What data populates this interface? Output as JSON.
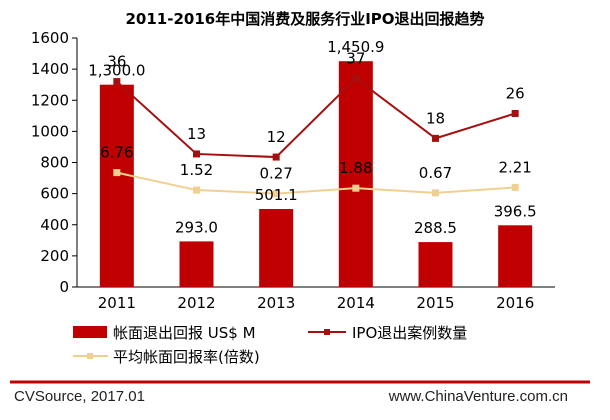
{
  "chart_data": {
    "type": "bar",
    "title": "2011-2016年中国消费及服务行业IPO退出回报趋势",
    "categories": [
      "2011",
      "2012",
      "2013",
      "2014",
      "2015",
      "2016"
    ],
    "ylim": [
      0,
      1600
    ],
    "yticks": [
      "0",
      "200",
      "400",
      "600",
      "800",
      "1000",
      "1200",
      "1400",
      "1600"
    ],
    "grid": false,
    "legend_position": "bottom",
    "series": [
      {
        "name": "帐面退出回报 US$ M",
        "type": "bar",
        "color": "#c00000",
        "values": [
          1300.0,
          293.0,
          501.1,
          1450.9,
          288.5,
          396.5
        ],
        "labels": [
          "1,300.0",
          "293.0",
          "501.1",
          "1,450.9",
          "288.5",
          "396.5"
        ]
      },
      {
        "name": "IPO退出案例数量",
        "type": "line",
        "color": "#a50f0f",
        "values": [
          36,
          13,
          12,
          37,
          18,
          26
        ],
        "plotted_y": [
          1320,
          855,
          835,
          1340,
          955,
          1115
        ],
        "labels": [
          "36",
          "13",
          "12",
          "37",
          "18",
          "26"
        ]
      },
      {
        "name": "平均帐面回报率(倍数)",
        "type": "line",
        "color": "#f0d090",
        "values": [
          6.76,
          1.52,
          0.27,
          1.88,
          0.67,
          2.21
        ],
        "plotted_y": [
          735,
          623,
          600,
          635,
          605,
          640
        ],
        "labels": [
          "6.76",
          "1.52",
          "0.27",
          "1.88",
          "0.67",
          "2.21"
        ]
      }
    ]
  },
  "footer": {
    "source": "CVSource, 2017.01",
    "website": "www.ChinaVenture.com.cn"
  }
}
